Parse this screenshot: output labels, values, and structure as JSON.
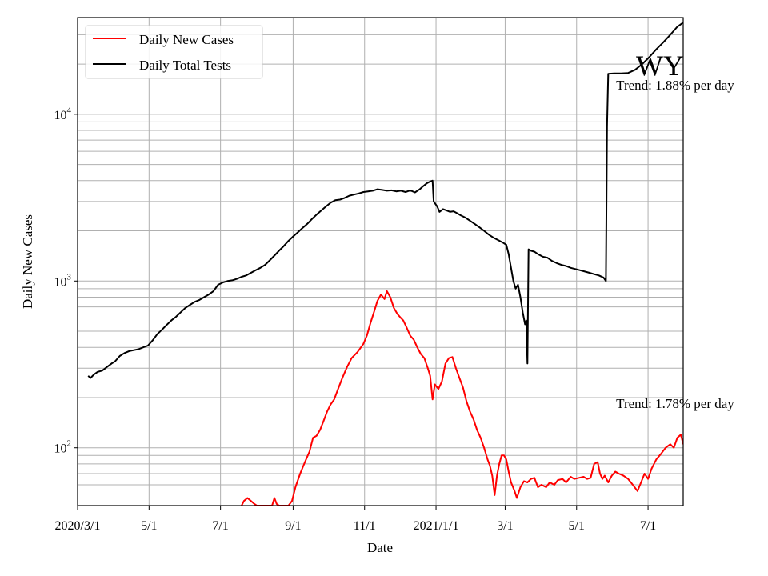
{
  "chart_data": {
    "type": "line",
    "title": "",
    "state_label": "WY",
    "xlabel": "Date",
    "ylabel": "Daily New Cases",
    "y_scale": "log",
    "ylim": [
      45,
      38000
    ],
    "xlim": [
      "2020-03-01",
      "2021-07-31"
    ],
    "grid": true,
    "legend_position": "top-left",
    "x_tick_labels": [
      {
        "date": "2020-03-01",
        "label": "2020/3/1"
      },
      {
        "date": "2020-05-01",
        "label": "5/1"
      },
      {
        "date": "2020-07-01",
        "label": "7/1"
      },
      {
        "date": "2020-09-01",
        "label": "9/1"
      },
      {
        "date": "2020-11-01",
        "label": "11/1"
      },
      {
        "date": "2021-01-01",
        "label": "2021/1/1"
      },
      {
        "date": "2021-03-01",
        "label": "3/1"
      },
      {
        "date": "2021-05-01",
        "label": "5/1"
      },
      {
        "date": "2021-07-01",
        "label": "7/1"
      }
    ],
    "y_tick_labels": [
      {
        "value": 100,
        "base": "10",
        "exp": "2"
      },
      {
        "value": 1000,
        "base": "10",
        "exp": "3"
      },
      {
        "value": 10000,
        "base": "10",
        "exp": "4"
      }
    ],
    "series": [
      {
        "name": "Daily New Cases",
        "color": "#ff0000",
        "points": [
          [
            "2020-07-19",
            45
          ],
          [
            "2020-07-21",
            48
          ],
          [
            "2020-07-24",
            50
          ],
          [
            "2020-07-27",
            48
          ],
          [
            "2020-07-30",
            46
          ],
          [
            "2020-08-01",
            45
          ],
          [
            "2020-08-14",
            45
          ],
          [
            "2020-08-16",
            50
          ],
          [
            "2020-08-18",
            46
          ],
          [
            "2020-08-20",
            45
          ],
          [
            "2020-08-28",
            45
          ],
          [
            "2020-08-31",
            48
          ],
          [
            "2020-09-03",
            58
          ],
          [
            "2020-09-07",
            70
          ],
          [
            "2020-09-11",
            82
          ],
          [
            "2020-09-15",
            95
          ],
          [
            "2020-09-18",
            115
          ],
          [
            "2020-09-21",
            118
          ],
          [
            "2020-09-24",
            128
          ],
          [
            "2020-09-27",
            145
          ],
          [
            "2020-09-30",
            165
          ],
          [
            "2020-10-03",
            182
          ],
          [
            "2020-10-06",
            195
          ],
          [
            "2020-10-09",
            222
          ],
          [
            "2020-10-13",
            262
          ],
          [
            "2020-10-17",
            305
          ],
          [
            "2020-10-21",
            345
          ],
          [
            "2020-10-26",
            375
          ],
          [
            "2020-10-31",
            420
          ],
          [
            "2020-11-03",
            472
          ],
          [
            "2020-11-06",
            560
          ],
          [
            "2020-11-09",
            650
          ],
          [
            "2020-11-12",
            760
          ],
          [
            "2020-11-15",
            830
          ],
          [
            "2020-11-18",
            780
          ],
          [
            "2020-11-20",
            870
          ],
          [
            "2020-11-23",
            800
          ],
          [
            "2020-11-26",
            690
          ],
          [
            "2020-11-29",
            635
          ],
          [
            "2020-12-02",
            600
          ],
          [
            "2020-12-04",
            580
          ],
          [
            "2020-12-07",
            525
          ],
          [
            "2020-12-10",
            470
          ],
          [
            "2020-12-13",
            445
          ],
          [
            "2020-12-16",
            400
          ],
          [
            "2020-12-19",
            365
          ],
          [
            "2020-12-22",
            345
          ],
          [
            "2020-12-25",
            300
          ],
          [
            "2020-12-27",
            270
          ],
          [
            "2020-12-29",
            195
          ],
          [
            "2020-12-31",
            240
          ],
          [
            "2021-01-03",
            225
          ],
          [
            "2021-01-06",
            250
          ],
          [
            "2021-01-09",
            320
          ],
          [
            "2021-01-12",
            345
          ],
          [
            "2021-01-15",
            350
          ],
          [
            "2021-01-18",
            300
          ],
          [
            "2021-01-21",
            262
          ],
          [
            "2021-01-24",
            230
          ],
          [
            "2021-01-27",
            190
          ],
          [
            "2021-01-30",
            165
          ],
          [
            "2021-02-02",
            148
          ],
          [
            "2021-02-05",
            128
          ],
          [
            "2021-02-08",
            115
          ],
          [
            "2021-02-11",
            100
          ],
          [
            "2021-02-14",
            85
          ],
          [
            "2021-02-16",
            78
          ],
          [
            "2021-02-18",
            68
          ],
          [
            "2021-02-20",
            52
          ],
          [
            "2021-02-22",
            68
          ],
          [
            "2021-02-24",
            80
          ],
          [
            "2021-02-26",
            90
          ],
          [
            "2021-02-28",
            90
          ],
          [
            "2021-03-02",
            85
          ],
          [
            "2021-03-04",
            72
          ],
          [
            "2021-03-06",
            62
          ],
          [
            "2021-03-09",
            55
          ],
          [
            "2021-03-11",
            50
          ],
          [
            "2021-03-14",
            58
          ],
          [
            "2021-03-17",
            63
          ],
          [
            "2021-03-20",
            62
          ],
          [
            "2021-03-23",
            65
          ],
          [
            "2021-03-26",
            66
          ],
          [
            "2021-03-29",
            58
          ],
          [
            "2021-04-01",
            60
          ],
          [
            "2021-04-05",
            58
          ],
          [
            "2021-04-08",
            62
          ],
          [
            "2021-04-12",
            60
          ],
          [
            "2021-04-15",
            64
          ],
          [
            "2021-04-19",
            65
          ],
          [
            "2021-04-22",
            62
          ],
          [
            "2021-04-26",
            67
          ],
          [
            "2021-04-29",
            65
          ],
          [
            "2021-05-03",
            66
          ],
          [
            "2021-05-07",
            67
          ],
          [
            "2021-05-10",
            65
          ],
          [
            "2021-05-13",
            66
          ],
          [
            "2021-05-16",
            80
          ],
          [
            "2021-05-19",
            82
          ],
          [
            "2021-05-21",
            70
          ],
          [
            "2021-05-23",
            65
          ],
          [
            "2021-05-25",
            68
          ],
          [
            "2021-05-28",
            62
          ],
          [
            "2021-05-31",
            68
          ],
          [
            "2021-06-03",
            72
          ],
          [
            "2021-06-06",
            70
          ],
          [
            "2021-06-10",
            68
          ],
          [
            "2021-06-14",
            65
          ],
          [
            "2021-06-18",
            60
          ],
          [
            "2021-06-22",
            55
          ],
          [
            "2021-06-25",
            62
          ],
          [
            "2021-06-28",
            70
          ],
          [
            "2021-07-01",
            65
          ],
          [
            "2021-07-04",
            75
          ],
          [
            "2021-07-08",
            85
          ],
          [
            "2021-07-12",
            92
          ],
          [
            "2021-07-16",
            100
          ],
          [
            "2021-07-20",
            105
          ],
          [
            "2021-07-23",
            100
          ],
          [
            "2021-07-26",
            115
          ],
          [
            "2021-07-29",
            120
          ],
          [
            "2021-07-31",
            105
          ]
        ]
      },
      {
        "name": "Daily Total Tests",
        "color": "#000000",
        "points": [
          [
            "2020-03-10",
            270
          ],
          [
            "2020-03-12",
            262
          ],
          [
            "2020-03-15",
            275
          ],
          [
            "2020-03-18",
            285
          ],
          [
            "2020-03-22",
            290
          ],
          [
            "2020-03-26",
            305
          ],
          [
            "2020-03-30",
            320
          ],
          [
            "2020-04-02",
            330
          ],
          [
            "2020-04-06",
            355
          ],
          [
            "2020-04-10",
            370
          ],
          [
            "2020-04-14",
            380
          ],
          [
            "2020-04-18",
            385
          ],
          [
            "2020-04-22",
            390
          ],
          [
            "2020-04-26",
            400
          ],
          [
            "2020-04-30",
            410
          ],
          [
            "2020-05-04",
            440
          ],
          [
            "2020-05-08",
            480
          ],
          [
            "2020-05-12",
            510
          ],
          [
            "2020-05-16",
            545
          ],
          [
            "2020-05-20",
            580
          ],
          [
            "2020-05-24",
            610
          ],
          [
            "2020-05-28",
            650
          ],
          [
            "2020-06-01",
            690
          ],
          [
            "2020-06-05",
            720
          ],
          [
            "2020-06-09",
            750
          ],
          [
            "2020-06-13",
            770
          ],
          [
            "2020-06-17",
            800
          ],
          [
            "2020-06-21",
            830
          ],
          [
            "2020-06-25",
            870
          ],
          [
            "2020-06-29",
            950
          ],
          [
            "2020-07-03",
            980
          ],
          [
            "2020-07-07",
            1000
          ],
          [
            "2020-07-11",
            1010
          ],
          [
            "2020-07-15",
            1030
          ],
          [
            "2020-07-19",
            1060
          ],
          [
            "2020-07-23",
            1080
          ],
          [
            "2020-07-27",
            1120
          ],
          [
            "2020-07-31",
            1160
          ],
          [
            "2020-08-04",
            1200
          ],
          [
            "2020-08-08",
            1250
          ],
          [
            "2020-08-12",
            1330
          ],
          [
            "2020-08-16",
            1420
          ],
          [
            "2020-08-20",
            1520
          ],
          [
            "2020-08-24",
            1620
          ],
          [
            "2020-08-28",
            1740
          ],
          [
            "2020-09-01",
            1850
          ],
          [
            "2020-09-05",
            1960
          ],
          [
            "2020-09-09",
            2080
          ],
          [
            "2020-09-13",
            2200
          ],
          [
            "2020-09-17",
            2350
          ],
          [
            "2020-09-21",
            2500
          ],
          [
            "2020-09-25",
            2650
          ],
          [
            "2020-09-29",
            2800
          ],
          [
            "2020-10-03",
            2950
          ],
          [
            "2020-10-07",
            3050
          ],
          [
            "2020-10-11",
            3080
          ],
          [
            "2020-10-15",
            3150
          ],
          [
            "2020-10-19",
            3250
          ],
          [
            "2020-10-23",
            3300
          ],
          [
            "2020-10-27",
            3350
          ],
          [
            "2020-10-31",
            3420
          ],
          [
            "2020-11-04",
            3450
          ],
          [
            "2020-11-08",
            3480
          ],
          [
            "2020-11-12",
            3550
          ],
          [
            "2020-11-16",
            3520
          ],
          [
            "2020-11-20",
            3480
          ],
          [
            "2020-11-24",
            3500
          ],
          [
            "2020-11-28",
            3450
          ],
          [
            "2020-12-02",
            3480
          ],
          [
            "2020-12-06",
            3420
          ],
          [
            "2020-12-10",
            3500
          ],
          [
            "2020-12-14",
            3400
          ],
          [
            "2020-12-18",
            3550
          ],
          [
            "2020-12-21",
            3700
          ],
          [
            "2020-12-24",
            3850
          ],
          [
            "2020-12-27",
            3950
          ],
          [
            "2020-12-29",
            4000
          ],
          [
            "2020-12-30",
            3000
          ],
          [
            "2021-01-02",
            2800
          ],
          [
            "2021-01-04",
            2600
          ],
          [
            "2021-01-07",
            2700
          ],
          [
            "2021-01-10",
            2650
          ],
          [
            "2021-01-13",
            2600
          ],
          [
            "2021-01-16",
            2620
          ],
          [
            "2021-01-19",
            2550
          ],
          [
            "2021-01-22",
            2480
          ],
          [
            "2021-01-26",
            2400
          ],
          [
            "2021-01-30",
            2300
          ],
          [
            "2021-02-03",
            2200
          ],
          [
            "2021-02-07",
            2100
          ],
          [
            "2021-02-11",
            2000
          ],
          [
            "2021-02-15",
            1900
          ],
          [
            "2021-02-19",
            1820
          ],
          [
            "2021-02-23",
            1760
          ],
          [
            "2021-02-27",
            1700
          ],
          [
            "2021-03-02",
            1650
          ],
          [
            "2021-03-04",
            1450
          ],
          [
            "2021-03-06",
            1200
          ],
          [
            "2021-03-08",
            1000
          ],
          [
            "2021-03-10",
            900
          ],
          [
            "2021-03-12",
            950
          ],
          [
            "2021-03-14",
            800
          ],
          [
            "2021-03-16",
            650
          ],
          [
            "2021-03-18",
            550
          ],
          [
            "2021-03-19",
            580
          ],
          [
            "2021-03-20",
            320
          ],
          [
            "2021-03-21",
            1550
          ],
          [
            "2021-03-23",
            1520
          ],
          [
            "2021-03-26",
            1500
          ],
          [
            "2021-03-29",
            1450
          ],
          [
            "2021-04-02",
            1400
          ],
          [
            "2021-04-06",
            1380
          ],
          [
            "2021-04-10",
            1320
          ],
          [
            "2021-04-14",
            1280
          ],
          [
            "2021-04-18",
            1250
          ],
          [
            "2021-04-22",
            1230
          ],
          [
            "2021-04-26",
            1200
          ],
          [
            "2021-04-30",
            1180
          ],
          [
            "2021-05-04",
            1160
          ],
          [
            "2021-05-08",
            1140
          ],
          [
            "2021-05-12",
            1120
          ],
          [
            "2021-05-16",
            1100
          ],
          [
            "2021-05-20",
            1080
          ],
          [
            "2021-05-24",
            1050
          ],
          [
            "2021-05-26",
            1000
          ],
          [
            "2021-05-27",
            8500
          ],
          [
            "2021-05-28",
            17500
          ],
          [
            "2021-06-02",
            17600
          ],
          [
            "2021-06-08",
            17600
          ],
          [
            "2021-06-14",
            17700
          ],
          [
            "2021-06-20",
            18500
          ],
          [
            "2021-06-26",
            20000
          ],
          [
            "2021-07-02",
            22000
          ],
          [
            "2021-07-08",
            24500
          ],
          [
            "2021-07-14",
            27000
          ],
          [
            "2021-07-20",
            30000
          ],
          [
            "2021-07-26",
            33500
          ],
          [
            "2021-07-31",
            35500
          ]
        ]
      }
    ],
    "annotations": [
      {
        "text": "Trend: 1.88% per day",
        "anchor_date": "2021-07-31",
        "anchor_value": 15000
      },
      {
        "text": "Trend: 1.78% per day",
        "anchor_date": "2021-07-31",
        "anchor_value": 185
      }
    ]
  }
}
